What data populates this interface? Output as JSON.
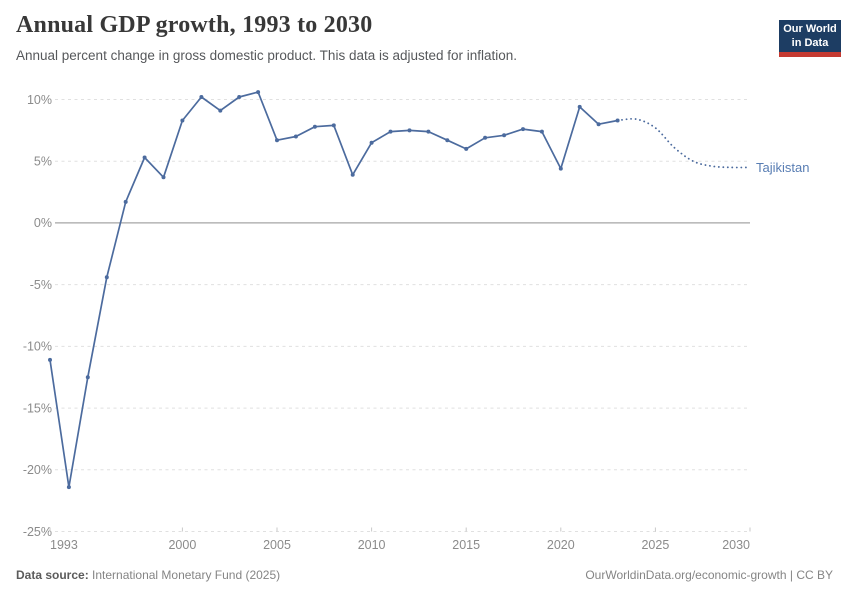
{
  "header": {
    "title": "Annual GDP growth, 1993 to 2030",
    "subtitle": "Annual percent change in gross domestic product. This data is adjusted for inflation.",
    "logo": {
      "line1": "Our World",
      "line2": "in Data",
      "bg_color": "#1d3d63",
      "accent_color": "#c53a31"
    }
  },
  "footer": {
    "source_label": "Data source:",
    "source_value": " International Monetary Fund (2025)",
    "url": "OurWorldinData.org/economic-growth",
    "license": " | CC BY"
  },
  "chart_data": {
    "type": "line",
    "title": "Annual GDP growth, 1993 to 2030",
    "entity": "Tajikistan",
    "unit": "%",
    "xlim": [
      1993,
      2030
    ],
    "ylim": [
      -25,
      11
    ],
    "x_ticks": [
      1993,
      2000,
      2005,
      2010,
      2015,
      2020,
      2025,
      2030
    ],
    "y_ticks": [
      10,
      5,
      0,
      -5,
      -10,
      -15,
      -20,
      -25
    ],
    "grid": true,
    "legend_position": "right-end-of-line",
    "series": [
      {
        "name": "Tajikistan",
        "style": "solid",
        "markers": true,
        "x": [
          1993,
          1994,
          1995,
          1996,
          1997,
          1998,
          1999,
          2000,
          2001,
          2002,
          2003,
          2004,
          2005,
          2006,
          2007,
          2008,
          2009,
          2010,
          2011,
          2012,
          2013,
          2014,
          2015,
          2016,
          2017,
          2018,
          2019,
          2020,
          2021,
          2022,
          2023
        ],
        "values": [
          -11.1,
          -21.4,
          -12.5,
          -4.4,
          1.7,
          5.3,
          3.7,
          8.3,
          10.2,
          9.1,
          10.2,
          10.6,
          6.7,
          7.0,
          7.8,
          7.9,
          3.9,
          6.5,
          7.4,
          7.5,
          7.4,
          6.7,
          6.0,
          6.9,
          7.1,
          7.6,
          7.4,
          4.4,
          9.4,
          8.0,
          8.3
        ]
      },
      {
        "name": "Tajikistan (projection)",
        "style": "dotted",
        "markers": false,
        "x": [
          2023,
          2024,
          2025,
          2026,
          2027,
          2028,
          2029,
          2030
        ],
        "values": [
          8.3,
          8.4,
          7.7,
          6.1,
          5.0,
          4.6,
          4.5,
          4.5
        ]
      }
    ],
    "colors": {
      "line": "#4c6b9e",
      "entity_label": "#587db3",
      "grid": "#e0e0e0",
      "zero_line": "#a5a5a5",
      "tick_label": "#8b8b8b",
      "axis_tick": "#c8c8c8"
    }
  }
}
